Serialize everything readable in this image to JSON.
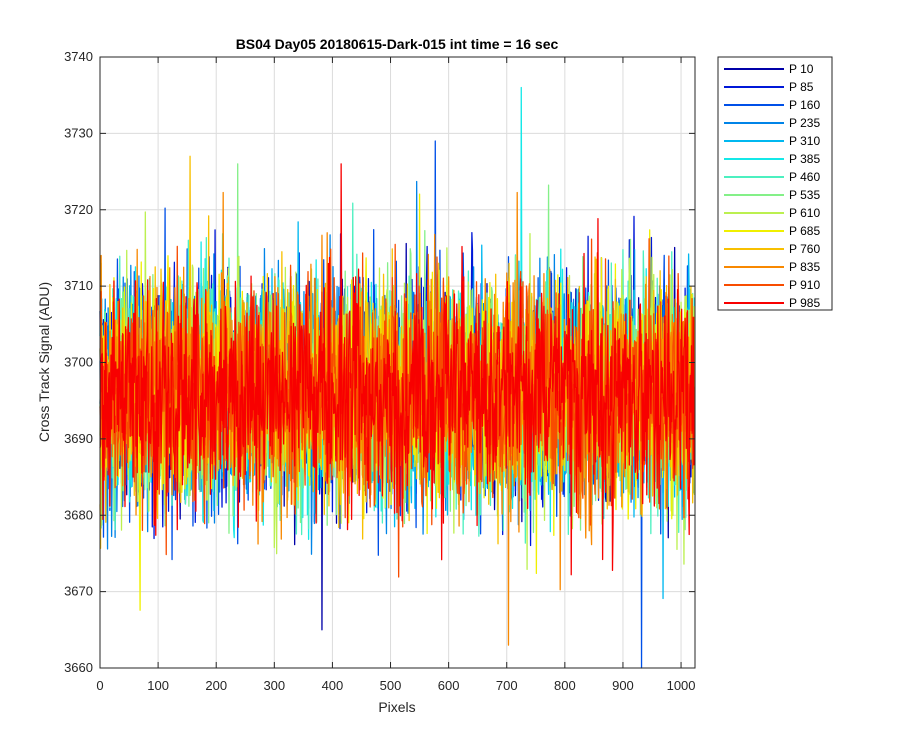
{
  "chart_data": {
    "type": "line",
    "title": "BS04 Day05 20180615-Dark-015 int time = 16 sec",
    "xlabel": "Pixels",
    "ylabel": "Cross Track Signal (ADU)",
    "xlim": [
      0,
      1024
    ],
    "ylim": [
      3660,
      3740
    ],
    "xticks": [
      "0",
      "100",
      "200",
      "300",
      "400",
      "500",
      "600",
      "700",
      "800",
      "900",
      "1000"
    ],
    "yticks": [
      "3660",
      "3670",
      "3680",
      "3690",
      "3700",
      "3710",
      "3720",
      "3730",
      "3740"
    ],
    "grid": true,
    "legend_position": "outside-top-right",
    "noise_model": {
      "mean": 3696,
      "std": 7,
      "points_per_series": 1024
    },
    "series": [
      {
        "name": "P 10",
        "color": "#0000a8",
        "mean": 3696
      },
      {
        "name": "P 85",
        "color": "#0018d8",
        "mean": 3696
      },
      {
        "name": "P 160",
        "color": "#0050e8",
        "mean": 3696
      },
      {
        "name": "P 235",
        "color": "#0084e8",
        "mean": 3696
      },
      {
        "name": "P 310",
        "color": "#00b8f0",
        "mean": 3696
      },
      {
        "name": "P 385",
        "color": "#14e8e8",
        "mean": 3696
      },
      {
        "name": "P 460",
        "color": "#4cf0c0",
        "mean": 3696
      },
      {
        "name": "P 535",
        "color": "#84f088",
        "mean": 3696
      },
      {
        "name": "P 610",
        "color": "#bcf050",
        "mean": 3696
      },
      {
        "name": "P 685",
        "color": "#f0f000",
        "mean": 3696
      },
      {
        "name": "P 760",
        "color": "#f8c000",
        "mean": 3696
      },
      {
        "name": "P 835",
        "color": "#f88800",
        "mean": 3696
      },
      {
        "name": "P 910",
        "color": "#f84c00",
        "mean": 3696
      },
      {
        "name": "P 985",
        "color": "#f80000",
        "mean": 3696
      }
    ],
    "annotated_extremes": [
      {
        "series": "P 385",
        "x": 725,
        "y": 3736
      },
      {
        "series": "P 160",
        "x": 577,
        "y": 3729
      },
      {
        "series": "P 160",
        "x": 932,
        "y": 3660
      },
      {
        "series": "P 10",
        "x": 382,
        "y": 3665
      },
      {
        "series": "P 835",
        "x": 703,
        "y": 3663
      },
      {
        "series": "P 760",
        "x": 155,
        "y": 3727
      },
      {
        "series": "P 985",
        "x": 415,
        "y": 3726
      },
      {
        "series": "P 535",
        "x": 237,
        "y": 3726
      }
    ]
  }
}
